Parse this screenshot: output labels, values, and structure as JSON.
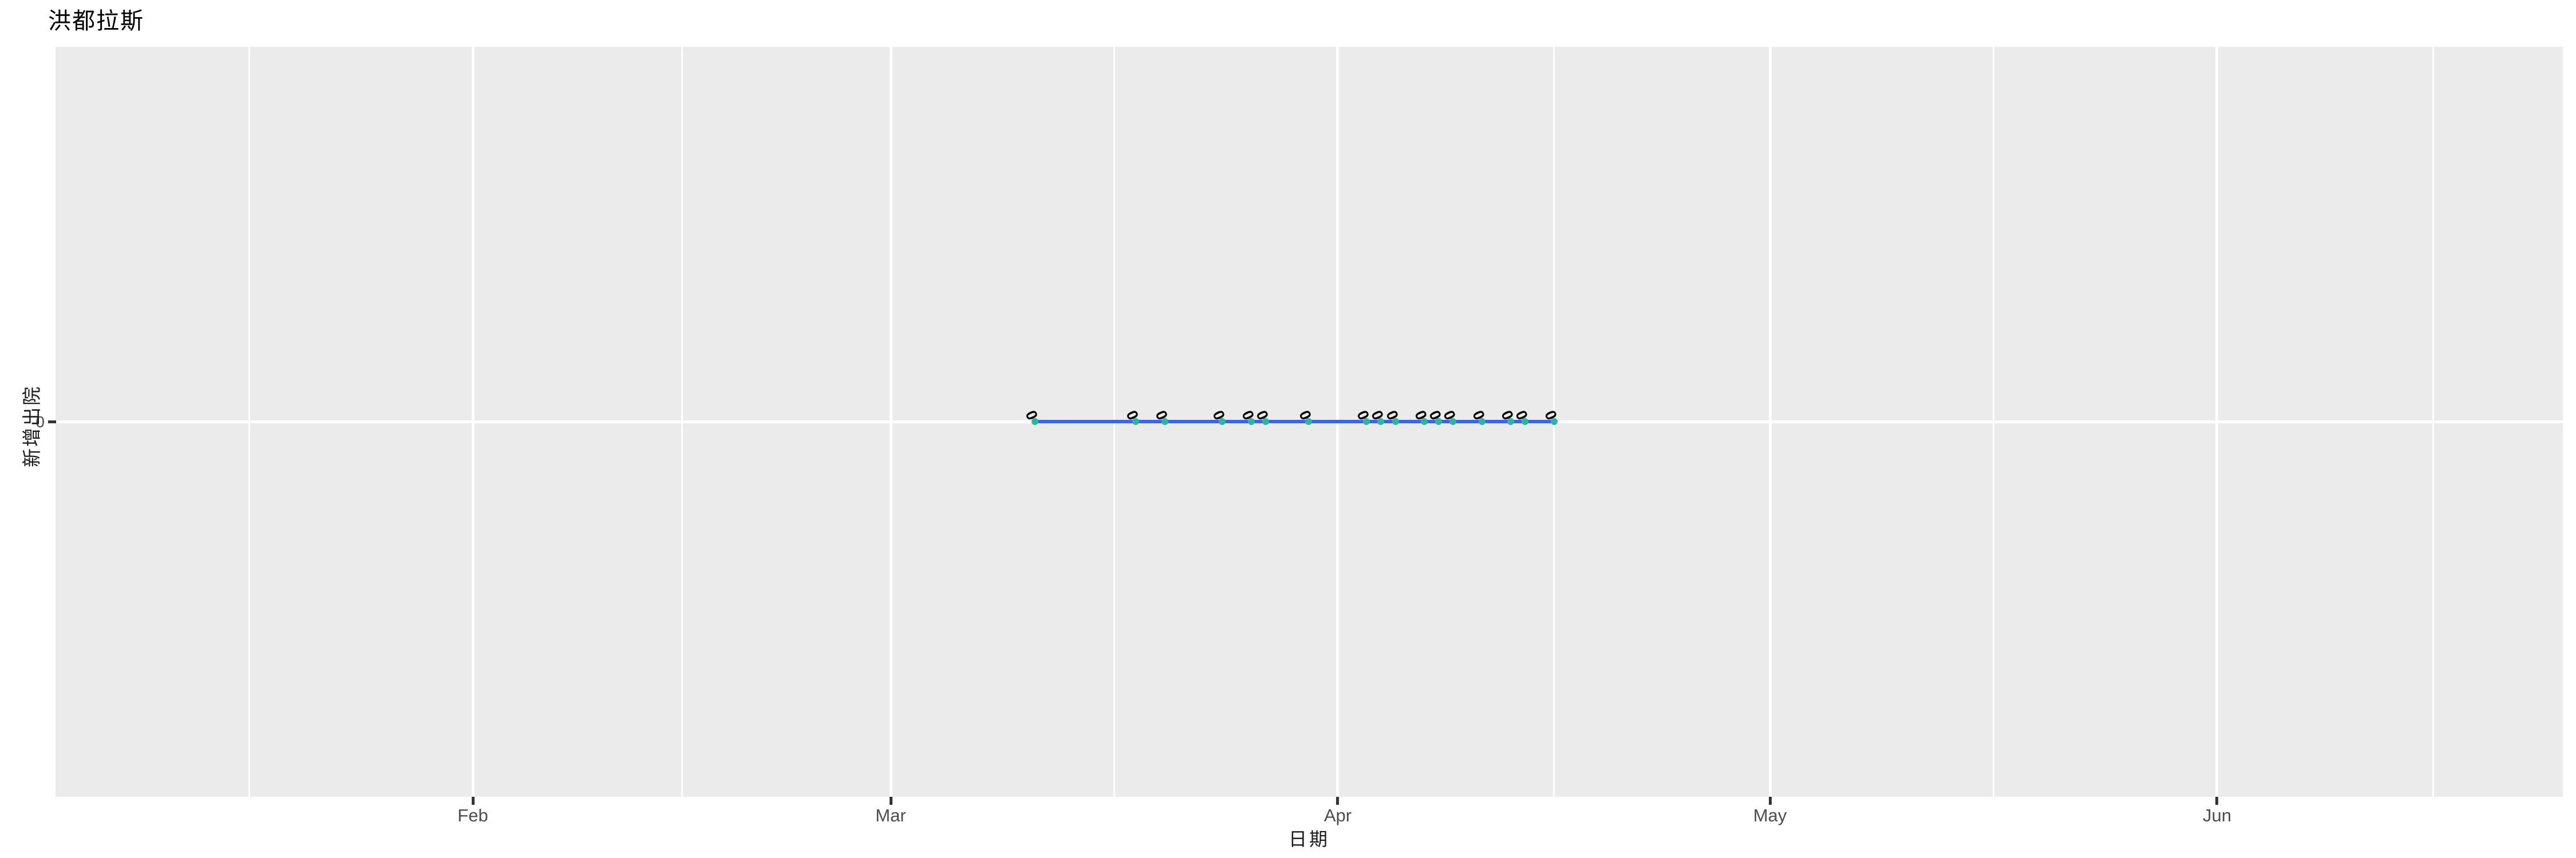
{
  "title": "洪都拉斯",
  "x_axis": {
    "label": "日期",
    "ticks": [
      "Feb",
      "Mar",
      "Apr",
      "May",
      "Jun"
    ]
  },
  "y_axis": {
    "label": "新增出院",
    "ticks": [
      "0"
    ]
  },
  "chart_data": {
    "type": "line",
    "title": "洪都拉斯",
    "xlabel": "日期",
    "ylabel": "新增出院",
    "series": [
      {
        "name": "新增出院",
        "x": [
          "2020-03-11",
          "2020-03-18",
          "2020-03-20",
          "2020-03-24",
          "2020-03-26",
          "2020-03-27",
          "2020-03-30",
          "2020-04-03",
          "2020-04-04",
          "2020-04-05",
          "2020-04-07",
          "2020-04-08",
          "2020-04-09",
          "2020-04-11",
          "2020-04-13",
          "2020-04-14",
          "2020-04-16"
        ],
        "values": [
          0,
          0,
          0,
          0,
          0,
          0,
          0,
          0,
          0,
          0,
          0,
          0,
          0,
          0,
          0,
          0,
          0
        ]
      }
    ],
    "point_labels_shown": true,
    "x_ticks": [
      {
        "label": "Feb",
        "date": "2020-02-01"
      },
      {
        "label": "Mar",
        "date": "2020-03-01"
      },
      {
        "label": "Apr",
        "date": "2020-04-01"
      },
      {
        "label": "May",
        "date": "2020-05-01"
      },
      {
        "label": "Jun",
        "date": "2020-06-01"
      }
    ],
    "x_month_boundaries": [
      "2020-01-01",
      "2020-02-01",
      "2020-03-01",
      "2020-04-01",
      "2020-05-01",
      "2020-06-01",
      "2020-07-01"
    ],
    "y_ticks": [
      {
        "label": "0",
        "value": 0
      }
    ],
    "grid": "white major and minor gridlines on gray panel",
    "legend": "none",
    "colors": {
      "line": "#3D63E9",
      "point": "#2CB5A0",
      "point_label": "#000000",
      "panel_background": "#EBEBEB",
      "gridline": "#FFFFFF",
      "tick_mark": "#333333",
      "tick_label": "#4D4D4D",
      "title_text": "#000000"
    }
  }
}
